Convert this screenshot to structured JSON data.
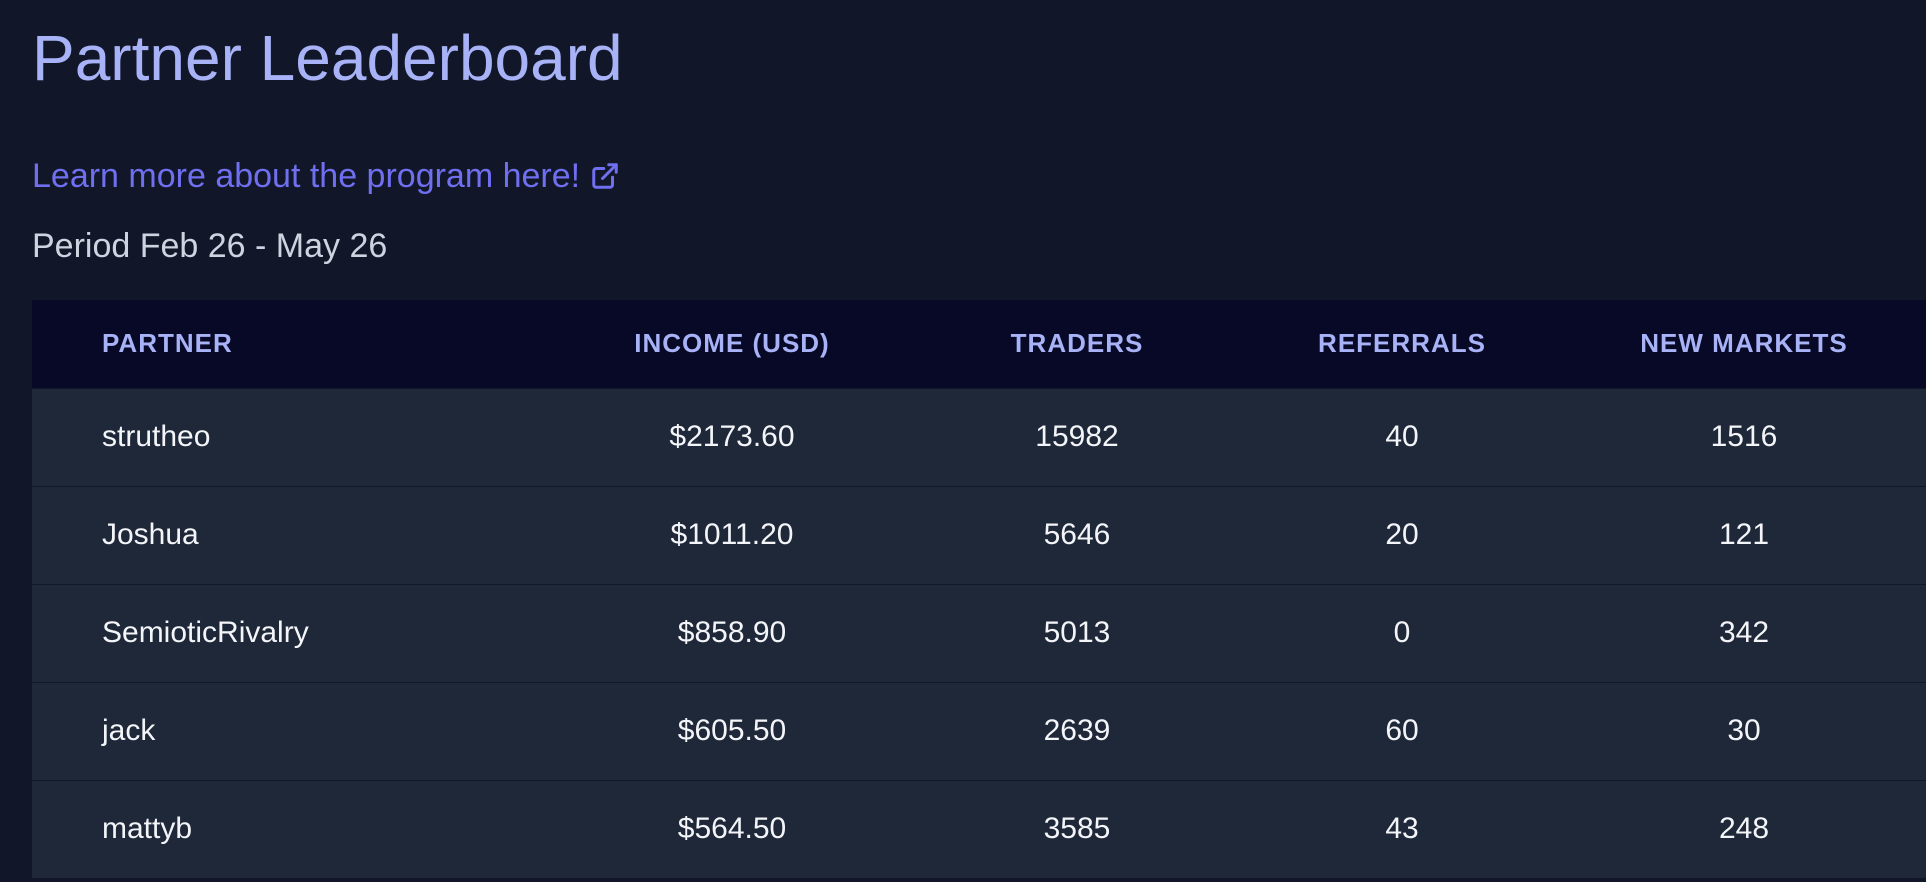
{
  "header": {
    "title": "Partner Leaderboard",
    "learn_more_link": "Learn more about the program here!",
    "link_icon": "external-link-icon",
    "period": "Period Feb 26 - May 26"
  },
  "colors": {
    "background": "#111729",
    "title": "#a8b2f7",
    "link": "#6f6ff0",
    "table_header_bg": "#080927",
    "table_row_bg": "#1f2839"
  },
  "table": {
    "columns": [
      "PARTNER",
      "INCOME (USD)",
      "TRADERS",
      "REFERRALS",
      "NEW MARKETS"
    ],
    "rows": [
      {
        "partner": "strutheo",
        "income": "$2173.60",
        "traders": "15982",
        "referrals": "40",
        "new_markets": "1516"
      },
      {
        "partner": "Joshua",
        "income": "$1011.20",
        "traders": "5646",
        "referrals": "20",
        "new_markets": "121"
      },
      {
        "partner": "SemioticRivalry",
        "income": "$858.90",
        "traders": "5013",
        "referrals": "0",
        "new_markets": "342"
      },
      {
        "partner": "jack",
        "income": "$605.50",
        "traders": "2639",
        "referrals": "60",
        "new_markets": "30"
      },
      {
        "partner": "mattyb",
        "income": "$564.50",
        "traders": "3585",
        "referrals": "43",
        "new_markets": "248"
      }
    ]
  }
}
